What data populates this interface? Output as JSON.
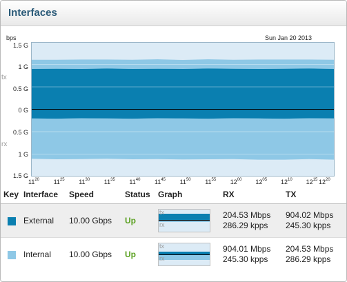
{
  "panel": {
    "title": "Interfaces"
  },
  "chart": {
    "unit": "bps",
    "date": "Sun Jan 20 2013",
    "side_tx": "tx",
    "side_rx": "rx",
    "ylabels": [
      "1.5 G",
      "1 G",
      "0.5 G",
      "0 G",
      "0.5 G",
      "1 G",
      "1.5 G"
    ],
    "xticks": [
      {
        "h": "11",
        "m": "20"
      },
      {
        "h": "11",
        "m": "25"
      },
      {
        "h": "11",
        "m": "30"
      },
      {
        "h": "11",
        "m": "35"
      },
      {
        "h": "11",
        "m": "40"
      },
      {
        "h": "11",
        "m": "45"
      },
      {
        "h": "11",
        "m": "50"
      },
      {
        "h": "11",
        "m": "55"
      },
      {
        "h": "12",
        "m": "00"
      },
      {
        "h": "12",
        "m": "05"
      },
      {
        "h": "12",
        "m": "10"
      },
      {
        "h": "12",
        "m": "15"
      },
      {
        "h": "12",
        "m": "20"
      }
    ],
    "colors": {
      "external": "#0a7fb0",
      "internal": "#8ec8e6",
      "background": "#dcebf6"
    }
  },
  "chart_data": {
    "type": "area",
    "xlabel": "",
    "ylabel": "bps",
    "ylim": [
      -1500000000.0,
      1500000000.0
    ],
    "x": [
      "11:20",
      "11:25",
      "11:30",
      "11:35",
      "11:40",
      "11:45",
      "11:50",
      "11:55",
      "12:00",
      "12:05",
      "12:10",
      "12:15",
      "12:20"
    ],
    "series": [
      {
        "name": "External tx",
        "values": [
          900000000.0,
          905000000.0,
          900000000.0,
          910000000.0,
          900000000.0,
          905000000.0,
          900000000.0,
          910000000.0,
          905000000.0,
          900000000.0,
          905000000.0,
          910000000.0,
          900000000.0
        ]
      },
      {
        "name": "Internal tx",
        "values": [
          205000000.0,
          200000000.0,
          210000000.0,
          200000000.0,
          205000000.0,
          210000000.0,
          200000000.0,
          205000000.0,
          200000000.0,
          210000000.0,
          205000000.0,
          200000000.0,
          205000000.0
        ]
      },
      {
        "name": "External rx",
        "values": [
          -205000000.0,
          -210000000.0,
          -200000000.0,
          -205000000.0,
          -210000000.0,
          -200000000.0,
          -205000000.0,
          -210000000.0,
          -200000000.0,
          -205000000.0,
          -210000000.0,
          -200000000.0,
          -205000000.0
        ]
      },
      {
        "name": "Internal rx",
        "values": [
          -900000000.0,
          -905000000.0,
          -910000000.0,
          -900000000.0,
          -905000000.0,
          -910000000.0,
          -915000000.0,
          -905000000.0,
          -910000000.0,
          -920000000.0,
          -915000000.0,
          -910000000.0,
          -920000000.0
        ]
      }
    ]
  },
  "table": {
    "headers": {
      "key": "Key",
      "interface": "Interface",
      "speed": "Speed",
      "status": "Status",
      "graph": "Graph",
      "rx": "RX",
      "tx": "TX"
    },
    "rows": [
      {
        "color": "#0a7fb0",
        "interface": "External",
        "speed": "10.00 Gbps",
        "status": "Up",
        "graph_tx": "tx",
        "graph_rx": "rx",
        "rx_bps": "204.53 Mbps",
        "rx_pps": "286.29 kpps",
        "tx_bps": "904.02 Mbps",
        "tx_pps": "245.30 kpps"
      },
      {
        "color": "#8ec8e6",
        "interface": "Internal",
        "speed": "10.00 Gbps",
        "status": "Up",
        "graph_tx": "tx",
        "graph_rx": "rx",
        "rx_bps": "904.01 Mbps",
        "rx_pps": "245.30 kpps",
        "tx_bps": "204.53 Mbps",
        "tx_pps": "286.29 kpps"
      }
    ]
  }
}
